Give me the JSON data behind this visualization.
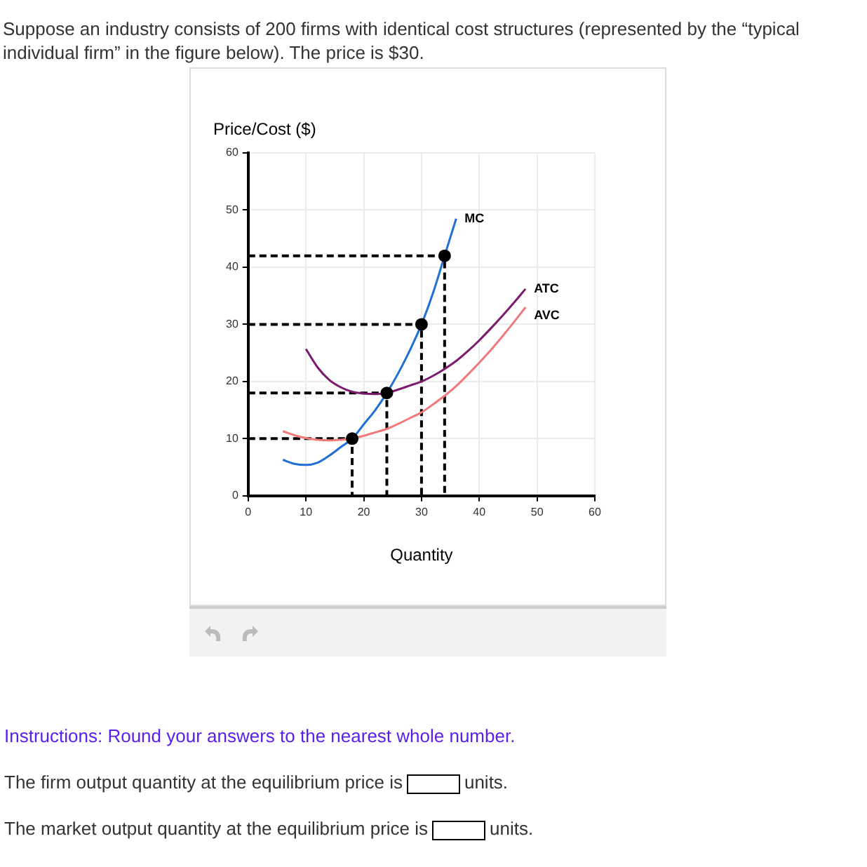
{
  "chart_data": {
    "type": "line",
    "title": "Suppose an industry consists of 200 firms with identical cost structures (represented by the “typical individual firm” in the figure below). The price is $30.",
    "xlabel": "Quantity",
    "ylabel": "Price/Cost ($)",
    "xlim": [
      0,
      60
    ],
    "xticks": [
      0,
      10,
      20,
      30,
      40,
      50,
      60
    ],
    "ylim": [
      0,
      60
    ],
    "yticks": [
      0,
      10,
      20,
      30,
      40,
      50,
      60
    ],
    "grid": true,
    "legend": false,
    "marker": "none",
    "series": [
      {
        "name": "MC",
        "color": "#1f6fd6",
        "x": [
          6,
          8,
          10,
          12,
          14,
          16,
          18,
          20,
          22,
          24,
          26,
          28,
          30,
          32,
          34,
          36
        ],
        "values": [
          6.3,
          5.6,
          5.4,
          5.8,
          7,
          8.5,
          10,
          12.5,
          15,
          18,
          21.5,
          25.5,
          30,
          35.5,
          42,
          48.5
        ]
      },
      {
        "name": "ATC",
        "color": "#7b1a6e",
        "x": [
          10,
          12,
          14,
          16,
          18,
          20,
          22,
          24,
          26,
          28,
          30,
          32,
          34,
          36,
          38,
          40,
          42,
          44,
          46,
          48
        ],
        "values": [
          25.7,
          22.5,
          20.3,
          19,
          18.2,
          17.9,
          17.8,
          18,
          18.6,
          19.3,
          20,
          21,
          22.2,
          23.6,
          25.3,
          27.2,
          29.3,
          31.5,
          33.8,
          36.2
        ]
      },
      {
        "name": "AVC",
        "color": "#f07a7a",
        "x": [
          6,
          8,
          10,
          12,
          14,
          16,
          18,
          20,
          22,
          24,
          26,
          28,
          30,
          32,
          34,
          36,
          38,
          40,
          42,
          44,
          46,
          48
        ],
        "values": [
          11.3,
          10.6,
          10.1,
          9.8,
          9.7,
          9.8,
          10,
          10.5,
          11.1,
          11.7,
          12.6,
          13.6,
          14.6,
          16,
          17.5,
          19.2,
          21.2,
          23.3,
          25.5,
          27.9,
          30.4,
          33
        ]
      },
      {
        "color": "#000000",
        "line_style": "dashed",
        "x": [
          0,
          18,
          18
        ],
        "values": [
          10,
          10,
          0
        ]
      },
      {
        "color": "#000000",
        "line_style": "dashed",
        "x": [
          0,
          24,
          24
        ],
        "values": [
          18,
          18,
          0
        ]
      },
      {
        "color": "#000000",
        "line_style": "dashed",
        "x": [
          0,
          30,
          30
        ],
        "values": [
          30,
          30,
          0
        ]
      },
      {
        "color": "#000000",
        "line_style": "dashed",
        "x": [
          0,
          34,
          34
        ],
        "values": [
          42,
          42,
          0
        ]
      },
      {
        "type": "scatter",
        "color": "#000000",
        "marker": "circle",
        "x": [
          18,
          24,
          30,
          34
        ],
        "values": [
          10,
          18,
          30,
          42
        ]
      }
    ],
    "annotations": [
      "Instructions: Round your answers to the nearest whole number.",
      "The firm output quantity at the equilibrium price is",
      "units.",
      "The market output quantity at the equilibrium price is",
      "units."
    ]
  }
}
